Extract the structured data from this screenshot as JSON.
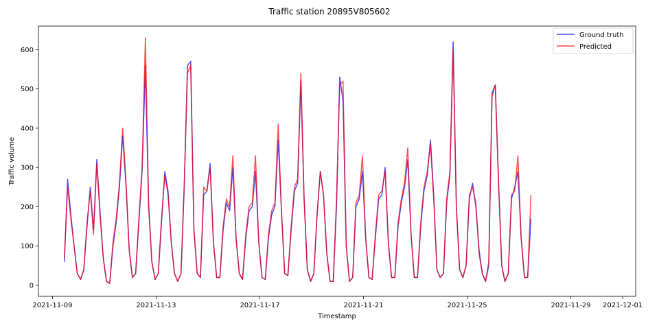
{
  "chart_data": {
    "type": "line",
    "title": "Traffic station 20895V805602",
    "xlabel": "Timestamp",
    "ylabel": "Traffic volume",
    "x_start": "2021-11-09T11:00",
    "x_step_hours": 3,
    "xlim": [
      "2021-11-08T11:00",
      "2021-12-01T12:00"
    ],
    "ylim": [
      -28,
      660
    ],
    "x_tick_labels": [
      "2021-11-09",
      "2021-11-13",
      "2021-11-17",
      "2021-11-21",
      "2021-11-25",
      "2021-11-29",
      "2021-12-01"
    ],
    "x_ticks": [
      "2021-11-09",
      "2021-11-13",
      "2021-11-17",
      "2021-11-21",
      "2021-11-25",
      "2021-11-29",
      "2021-12-01"
    ],
    "y_ticks": [
      0,
      100,
      200,
      300,
      400,
      500,
      600
    ],
    "grid": false,
    "legend_position": "top-right",
    "series": [
      {
        "name": "Ground truth",
        "color": "#0000ff",
        "values": [
          60,
          270,
          180,
          100,
          30,
          15,
          40,
          150,
          250,
          140,
          320,
          190,
          70,
          10,
          5,
          100,
          160,
          250,
          380,
          260,
          90,
          20,
          30,
          160,
          290,
          560,
          200,
          60,
          15,
          30,
          160,
          290,
          240,
          110,
          30,
          10,
          30,
          250,
          560,
          570,
          140,
          30,
          20,
          230,
          240,
          310,
          110,
          20,
          20,
          140,
          210,
          190,
          300,
          120,
          30,
          15,
          120,
          190,
          200,
          290,
          110,
          20,
          15,
          120,
          180,
          200,
          370,
          190,
          30,
          25,
          140,
          240,
          260,
          520,
          220,
          40,
          10,
          30,
          180,
          290,
          230,
          80,
          10,
          10,
          200,
          530,
          470,
          100,
          10,
          20,
          200,
          220,
          290,
          120,
          20,
          15,
          120,
          220,
          230,
          300,
          110,
          20,
          20,
          150,
          210,
          250,
          320,
          130,
          20,
          20,
          150,
          240,
          280,
          370,
          230,
          40,
          20,
          30,
          210,
          280,
          620,
          200,
          40,
          20,
          50,
          220,
          260,
          200,
          90,
          30,
          10,
          50,
          490,
          510,
          260,
          50,
          10,
          30,
          220,
          250,
          290,
          120,
          20,
          20,
          170
        ]
      },
      {
        "name": "Predicted",
        "color": "#ff0000",
        "values": [
          70,
          250,
          170,
          100,
          30,
          15,
          40,
          160,
          240,
          130,
          310,
          180,
          70,
          10,
          5,
          110,
          170,
          260,
          400,
          270,
          90,
          20,
          30,
          170,
          300,
          630,
          210,
          60,
          15,
          30,
          170,
          280,
          230,
          110,
          30,
          10,
          30,
          260,
          540,
          560,
          140,
          30,
          20,
          250,
          240,
          300,
          110,
          20,
          20,
          150,
          220,
          200,
          330,
          120,
          30,
          15,
          130,
          200,
          210,
          330,
          110,
          20,
          15,
          130,
          190,
          210,
          410,
          190,
          30,
          25,
          150,
          250,
          270,
          540,
          220,
          40,
          10,
          30,
          180,
          290,
          230,
          80,
          10,
          10,
          220,
          510,
          520,
          100,
          10,
          20,
          210,
          230,
          330,
          120,
          20,
          15,
          130,
          230,
          240,
          290,
          110,
          20,
          20,
          160,
          220,
          260,
          350,
          130,
          20,
          20,
          160,
          250,
          290,
          360,
          220,
          40,
          20,
          30,
          220,
          290,
          600,
          200,
          40,
          20,
          50,
          230,
          250,
          210,
          80,
          30,
          10,
          60,
          480,
          510,
          270,
          50,
          10,
          30,
          230,
          240,
          330,
          120,
          20,
          20,
          230
        ]
      }
    ]
  }
}
